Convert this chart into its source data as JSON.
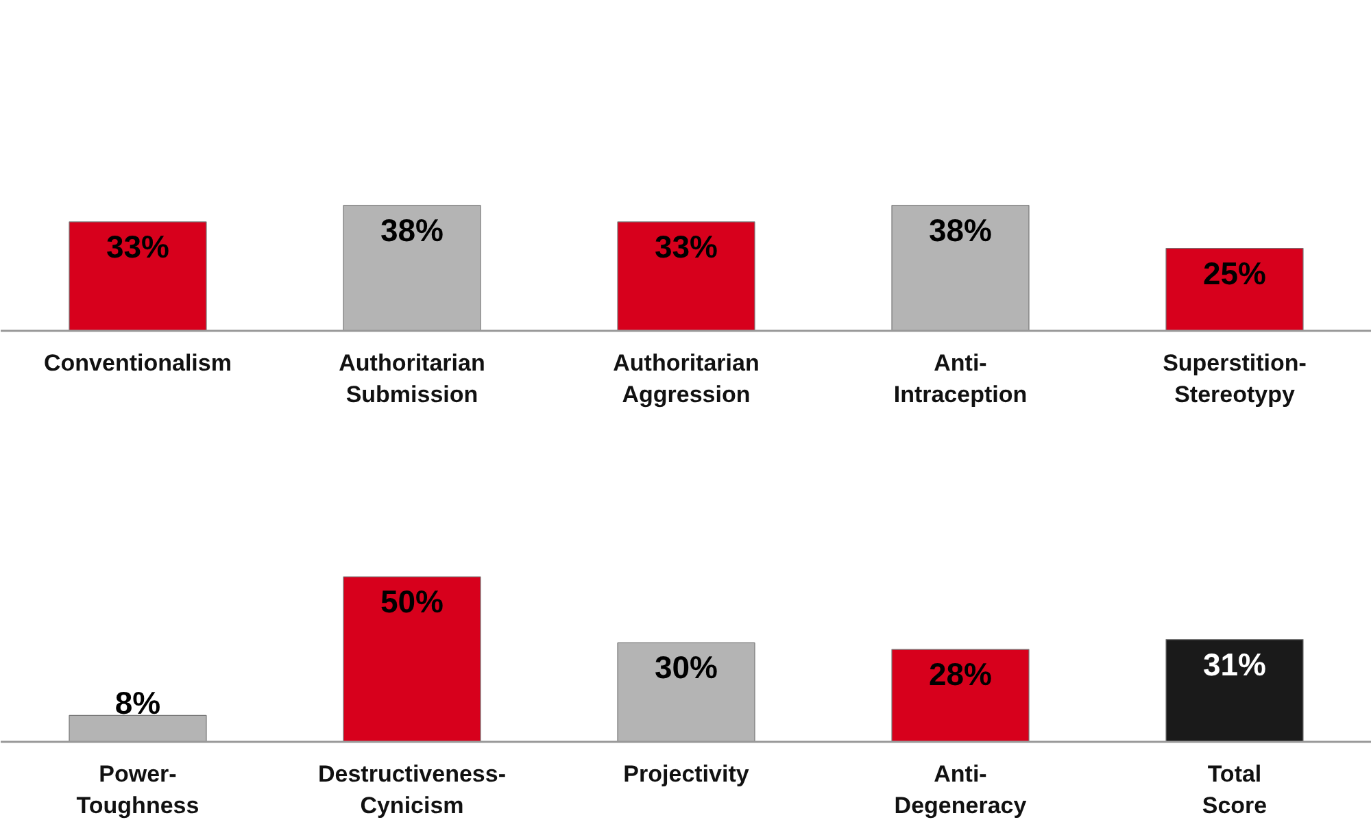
{
  "chart_data": [
    {
      "type": "bar",
      "categories": [
        "Conventionalism",
        "Authoritarian Submission",
        "Authoritarian Aggression",
        "Anti-Intraception",
        "Superstition-Stereotypy"
      ],
      "values": [
        33,
        38,
        33,
        38,
        25
      ],
      "value_labels": [
        "33%",
        "38%",
        "33%",
        "38%",
        "25%"
      ],
      "colors": [
        "#d7001c",
        "#b4b4b4",
        "#d7001c",
        "#b4b4b4",
        "#d7001c"
      ]
    },
    {
      "type": "bar",
      "categories": [
        "Power-Toughness",
        "Destructiveness-Cynicism",
        "Projectivity",
        "Anti-Degeneracy",
        "Total Score"
      ],
      "values": [
        8,
        50,
        30,
        28,
        31
      ],
      "value_labels": [
        "8%",
        "50%",
        "30%",
        "28%",
        "31%"
      ],
      "colors": [
        "#b4b4b4",
        "#d7001c",
        "#b4b4b4",
        "#d7001c",
        "#1a1a1a"
      ]
    }
  ]
}
